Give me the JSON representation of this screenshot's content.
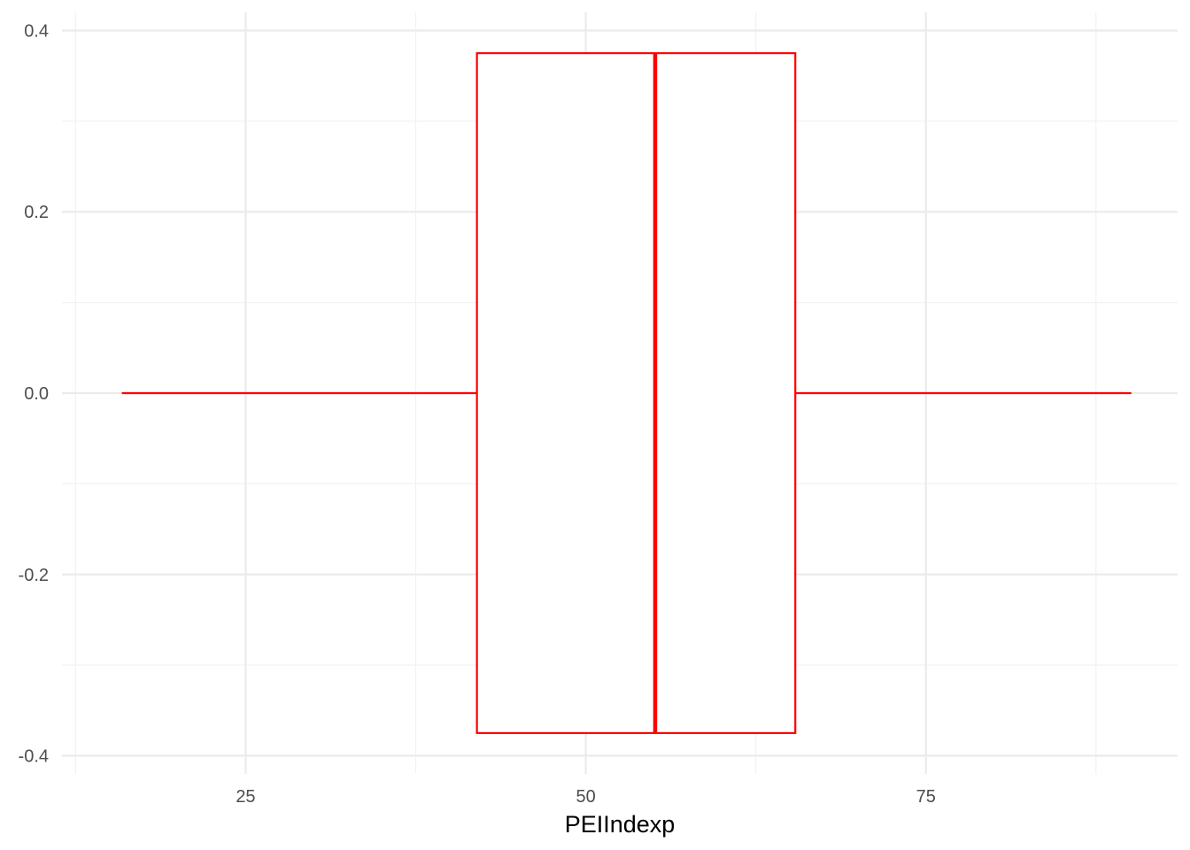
{
  "chart_data": {
    "type": "boxplot",
    "orientation": "horizontal",
    "xlabel": "PEIIndexp",
    "ylabel": "",
    "xlim": [
      11.5,
      93.5
    ],
    "ylim": [
      -0.42,
      0.42
    ],
    "x_ticks": [
      25,
      50,
      75
    ],
    "x_tick_labels": [
      "25",
      "50",
      "75"
    ],
    "x_minor_ticks": [
      12.5,
      37.5,
      62.5,
      87.5
    ],
    "y_ticks": [
      -0.4,
      -0.2,
      0.0,
      0.2,
      0.4
    ],
    "y_tick_labels": [
      "-0.4",
      "-0.2",
      "0.0",
      "0.2",
      "0.4"
    ],
    "y_minor_ticks": [
      -0.3,
      -0.1,
      0.1,
      0.3
    ],
    "grid": true,
    "box": {
      "whisker_low": 15.9,
      "q1": 42.0,
      "median": 55.1,
      "q3": 65.4,
      "whisker_high": 90.1,
      "y_center": 0.0,
      "half_width": 0.375
    },
    "colors": {
      "box_stroke": "#ff0000",
      "box_fill": "#ffffff",
      "background": "#ffffff"
    }
  }
}
